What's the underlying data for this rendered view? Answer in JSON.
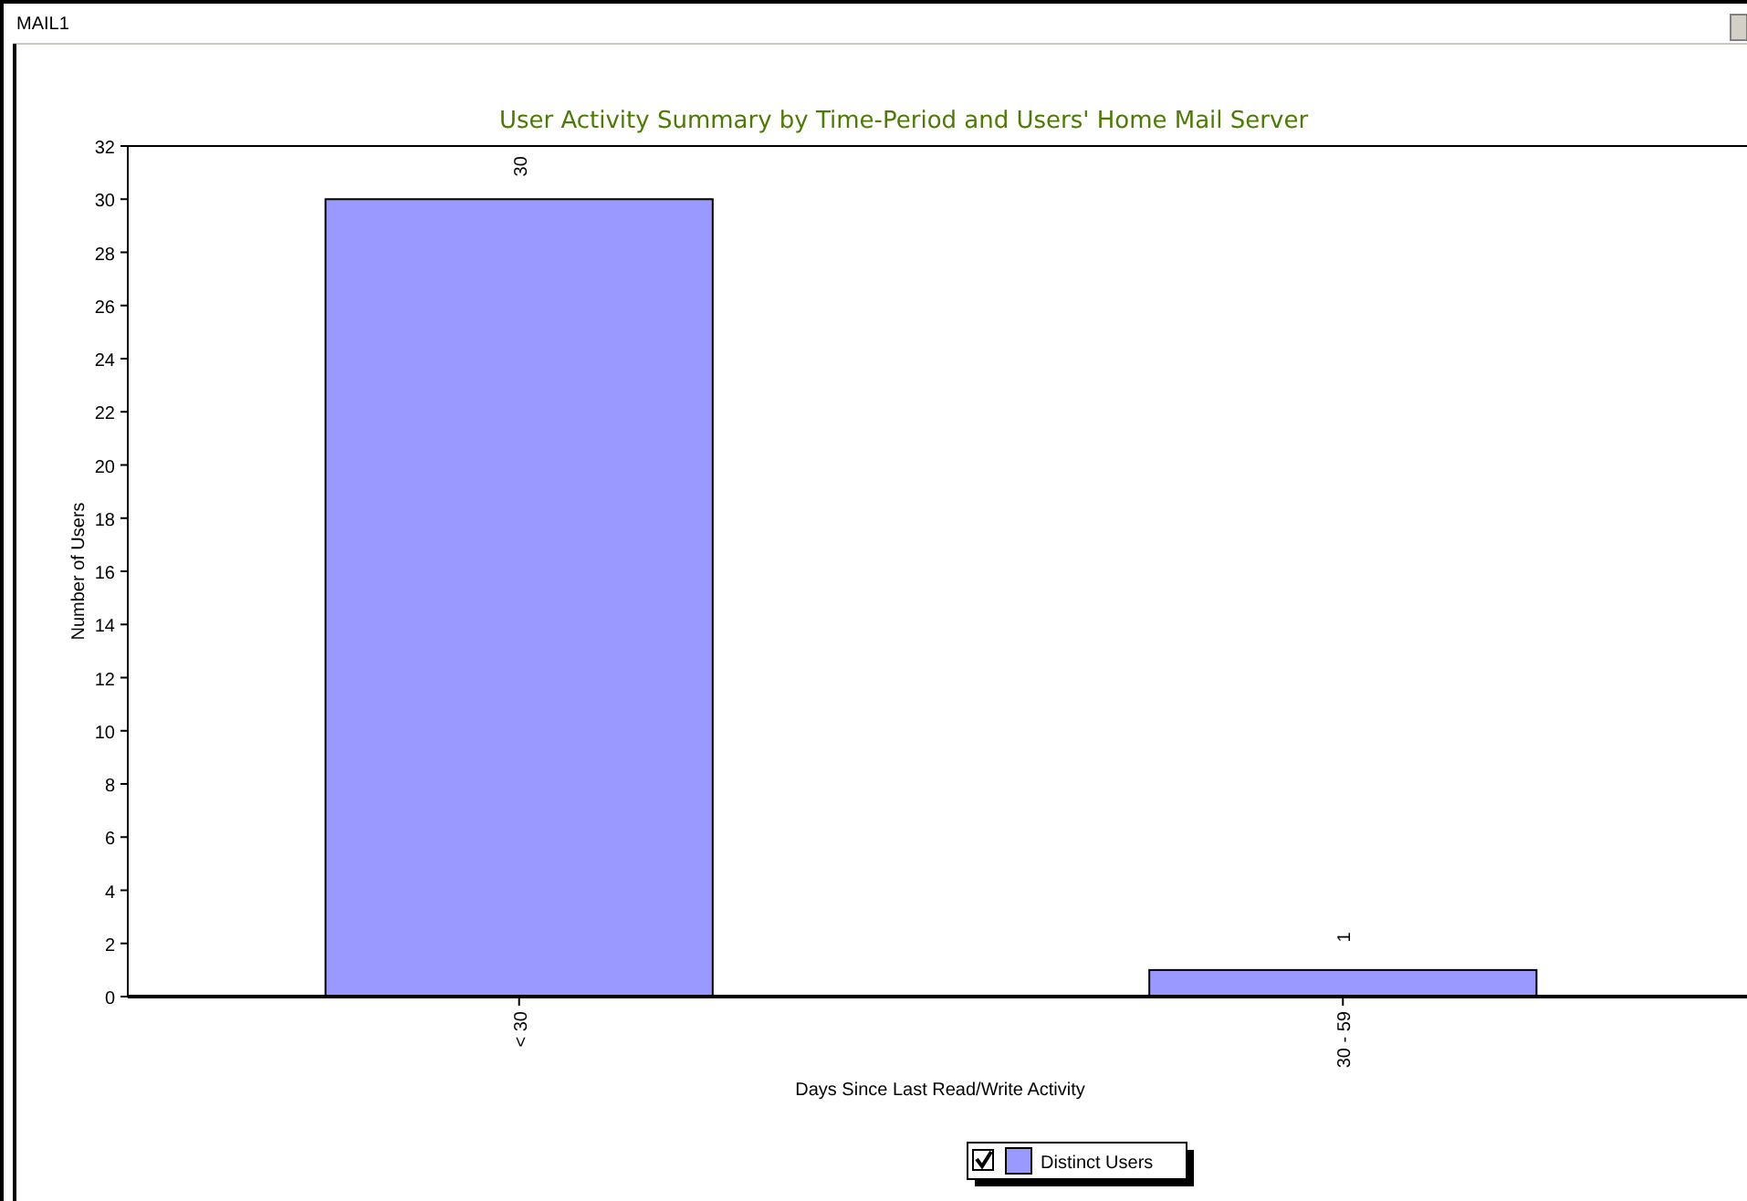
{
  "chart_data": {
    "type": "bar",
    "title": "User Activity Summary by Time-Period and Users' Home Mail Server",
    "annotations": [
      "MAIL1"
    ],
    "xlabel": "Days Since Last Read/Write Activity",
    "ylabel": "Number of Users",
    "categories": [
      "< 30",
      "30 - 59"
    ],
    "series": [
      {
        "name": "Distinct Users",
        "color": "#9999ff",
        "values": [
          30,
          1
        ]
      }
    ],
    "ylim": [
      0,
      32
    ],
    "yticks": [
      0,
      2,
      4,
      6,
      8,
      10,
      12,
      14,
      16,
      18,
      20,
      22,
      24,
      26,
      28,
      30,
      32
    ],
    "data_labels": true,
    "grid": false,
    "legend": "bottom"
  }
}
